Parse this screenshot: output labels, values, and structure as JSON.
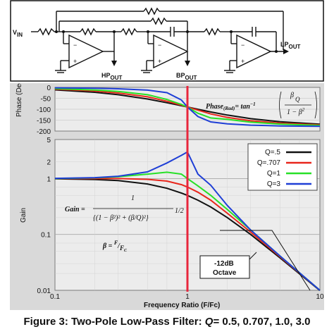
{
  "schematic": {
    "vin": "V",
    "vin_sub": "IN",
    "hp": "HP",
    "hp_sub": "OUT",
    "bp": "BP",
    "bp_sub": "OUT",
    "lp": "LP",
    "lp_sub": "OUT",
    "minus": "−",
    "plus": "+"
  },
  "phase_plot": {
    "ylabel": "Phase (Deg)",
    "yticks": [
      "0",
      "-50",
      "-100",
      "-150",
      "-200"
    ],
    "equation_lhs": "Phase",
    "equation_lhs_sub": "(Rad)",
    "equation_rhs": "= tan",
    "equation_exp": "−1",
    "eq_num": "β",
    "eq_num_den": "Q",
    "eq_den": "1 − β",
    "eq_den_sup": "2"
  },
  "gain_plot": {
    "ylabel": "Gain",
    "xlabel": "Frequency Ratio (F/Fc)",
    "yticks": [
      "5",
      "2",
      "1",
      "0.1",
      "0.01"
    ],
    "xticks": [
      "0.1",
      "1",
      "10"
    ],
    "legend": [
      "Q=.5",
      "Q=.707",
      "Q=1",
      "Q=3"
    ],
    "gain_eq_lhs": "Gain =",
    "gain_eq_num": "1",
    "gain_eq_den": "{(1 − β²)² + (β/Q)²}",
    "gain_eq_pow": "1/2",
    "beta_eq": "β = ",
    "beta_eq_f": "F",
    "beta_eq_fc": "F",
    "beta_eq_fc_sub": "C",
    "slope_label_1": "-12dB",
    "slope_label_2": "Octave"
  },
  "colors": {
    "q05": "#111111",
    "q0707": "#e8261c",
    "q1": "#27e027",
    "q3": "#1f3fd6",
    "cutoff": "#e8263c",
    "plot_bg": "#ececec",
    "frame": "#7a7a7a"
  },
  "chart_data": [
    {
      "type": "line",
      "ylabel": "Phase (Deg)",
      "xlabel": "",
      "xscale": "log",
      "xlim": [
        0.1,
        10
      ],
      "ylim": [
        -200,
        0
      ],
      "x": [
        0.1,
        0.2,
        0.3,
        0.5,
        0.7,
        0.9,
        1.0,
        1.2,
        1.5,
        2,
        3,
        5,
        10
      ],
      "series": [
        {
          "name": "Q=.5",
          "values": [
            -11.4,
            -22.6,
            -33.4,
            -53.1,
            -70.4,
            -83.9,
            -90,
            -100.4,
            -112.6,
            -126.9,
            -143.1,
            -157.4,
            -168.6
          ]
        },
        {
          "name": "Q=.707",
          "values": [
            -8.1,
            -16.6,
            -25.7,
            -43.3,
            -63.7,
            -81.4,
            -90,
            -104.2,
            -121.7,
            -137.3,
            -152.9,
            -163.8,
            -171.8
          ]
        },
        {
          "name": "Q=1",
          "values": [
            -5.8,
            -11.8,
            -18.3,
            -33.7,
            -55.5,
            -78.1,
            -90,
            -118.5,
            -140.0,
            -146.3,
            -159.4,
            -168.1,
            -174.2
          ]
        },
        {
          "name": "Q=3",
          "values": [
            -1.9,
            -4.0,
            -6.3,
            -12.5,
            -24.2,
            -57.6,
            -90,
            -133.6,
            -158.2,
            -167.0,
            -173.0,
            -176.4,
            -178.1
          ]
        }
      ]
    },
    {
      "type": "line",
      "ylabel": "Gain",
      "xlabel": "Frequency Ratio (F/Fc)",
      "xscale": "log",
      "yscale": "log",
      "xlim": [
        0.1,
        10
      ],
      "ylim": [
        0.01,
        5
      ],
      "x": [
        0.1,
        0.2,
        0.3,
        0.5,
        0.7,
        0.9,
        1.0,
        1.2,
        1.5,
        2,
        3,
        5,
        10
      ],
      "series": [
        {
          "name": "Q=.5",
          "values": [
            0.99,
            0.96,
            0.92,
            0.8,
            0.67,
            0.55,
            0.5,
            0.41,
            0.31,
            0.2,
            0.1,
            0.038,
            0.0099
          ]
        },
        {
          "name": "Q=.707",
          "values": [
            1.0,
            1.0,
            1.0,
            0.97,
            0.9,
            0.78,
            0.707,
            0.57,
            0.41,
            0.24,
            0.11,
            0.04,
            0.01
          ]
        },
        {
          "name": "Q=1",
          "values": [
            1.0,
            1.03,
            1.08,
            1.2,
            1.3,
            1.2,
            1.0,
            0.74,
            0.5,
            0.28,
            0.12,
            0.041,
            0.01
          ]
        },
        {
          "name": "Q=3",
          "values": [
            1.01,
            1.04,
            1.1,
            1.32,
            1.9,
            2.6,
            3.0,
            1.2,
            0.76,
            0.33,
            0.12,
            0.041,
            0.01
          ]
        }
      ]
    }
  ],
  "caption": {
    "prefix": "Figure 3: Two-Pole Low-Pass Filter: ",
    "q": "Q",
    "values": "= 0.5, 0.707, 1.0, 3.0"
  }
}
